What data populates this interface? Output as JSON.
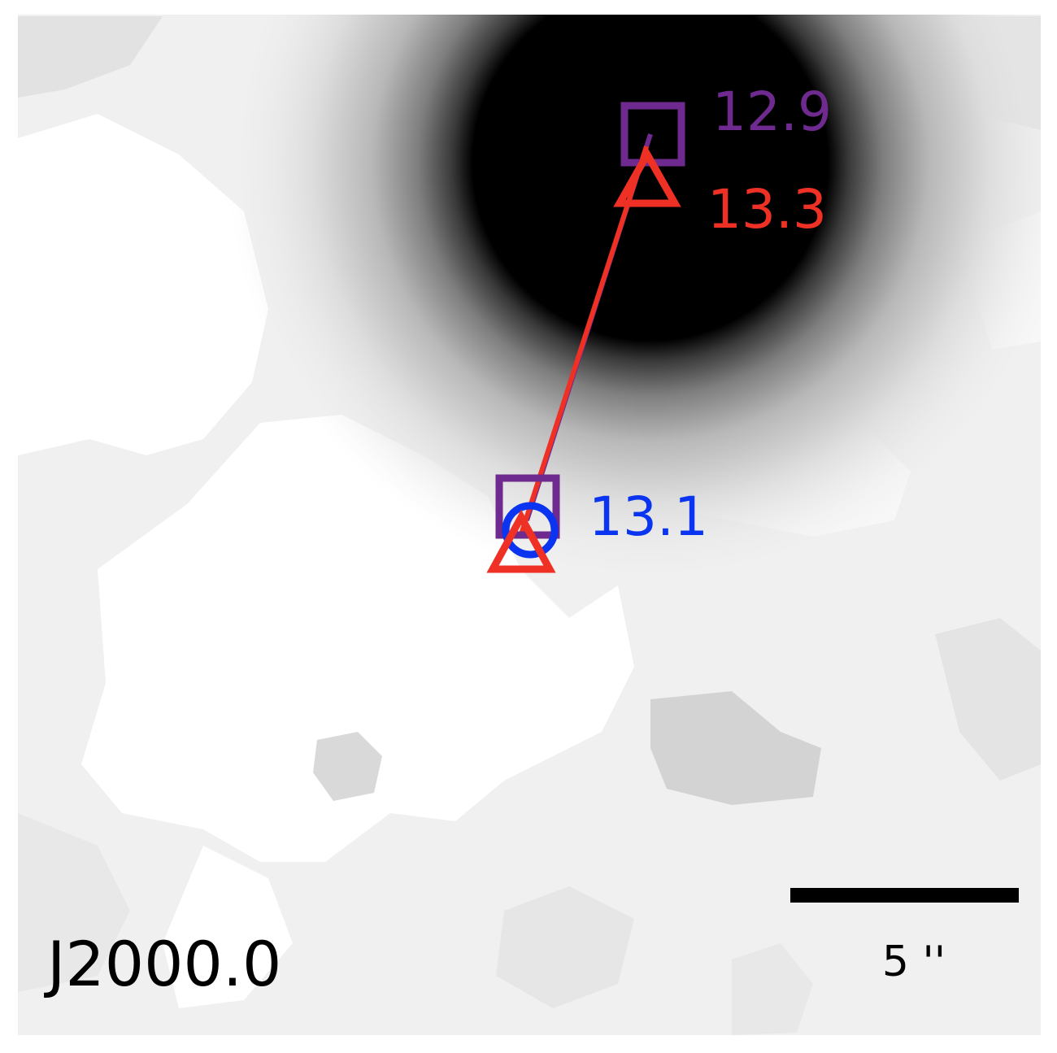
{
  "epoch_label": "J2000.0",
  "scale_bar": {
    "label": "5 ''",
    "arcsec": 5
  },
  "markers": {
    "purple": {
      "label": "12.9",
      "color": "#6e2a8e"
    },
    "red": {
      "label": "13.3",
      "color": "#ee3124"
    },
    "blue": {
      "label": "13.1",
      "color": "#0a34f0"
    }
  },
  "colors": {
    "frame_background": "#f0f0f0",
    "source_core": "#000000",
    "bar": "#000000",
    "text": "#000000"
  }
}
